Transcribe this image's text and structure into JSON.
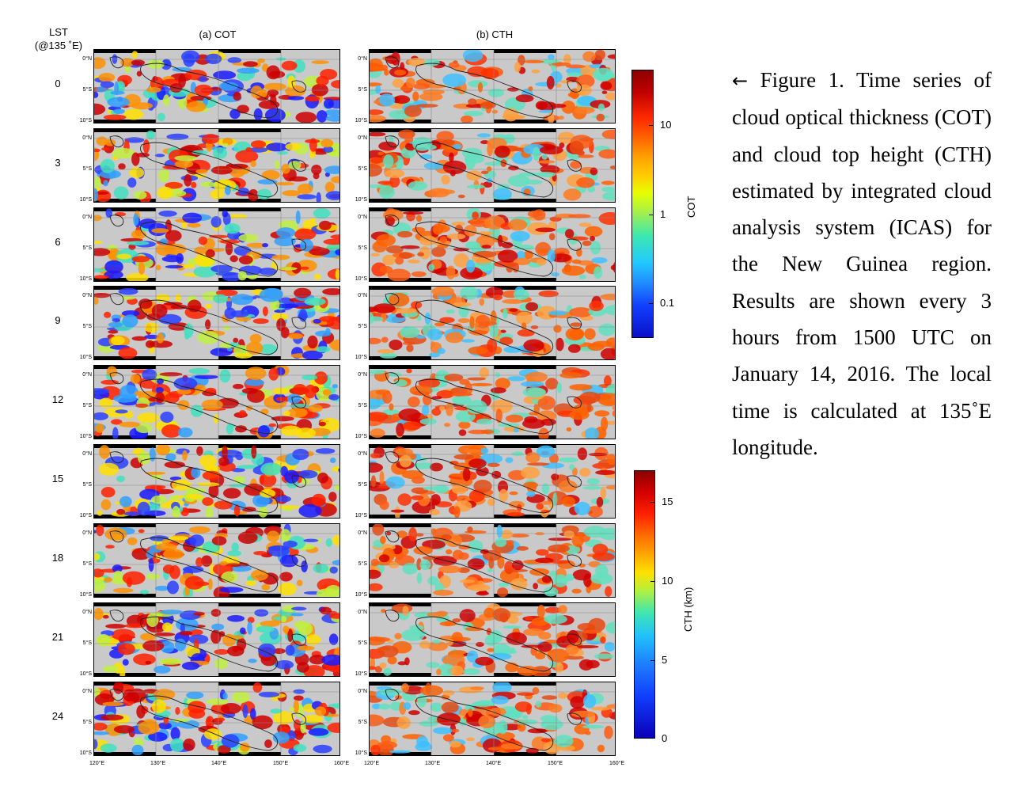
{
  "headers": {
    "lst": "LST",
    "lst_sub": "(@135 ˚E)",
    "cot": "(a) COT",
    "cth": "(b) CTH"
  },
  "rows": [
    "0",
    "3",
    "6",
    "9",
    "12",
    "15",
    "18",
    "21",
    "24"
  ],
  "lat_labels": [
    "0°N",
    "5°S",
    "10°S"
  ],
  "lon_labels": [
    "120°E",
    "130°E",
    "140°E",
    "150°E",
    "160°E"
  ],
  "colorbar_cot": {
    "label": "COT",
    "ticks": [
      "10",
      "1",
      "0.1"
    ]
  },
  "colorbar_cth": {
    "label": "CTH (km)",
    "ticks": [
      "15",
      "10",
      "5",
      "0"
    ]
  },
  "caption": {
    "arrow": "←",
    "text": "Figure 1. Time series of cloud optical thickness (COT) and cloud top height (CTH) estimated by integrated cloud analysis system (ICAS) for the New Guinea region. Results are shown every 3 hours from 1500 UTC on January 14, 2016. The local time is calculated at 135˚E longitude."
  }
}
